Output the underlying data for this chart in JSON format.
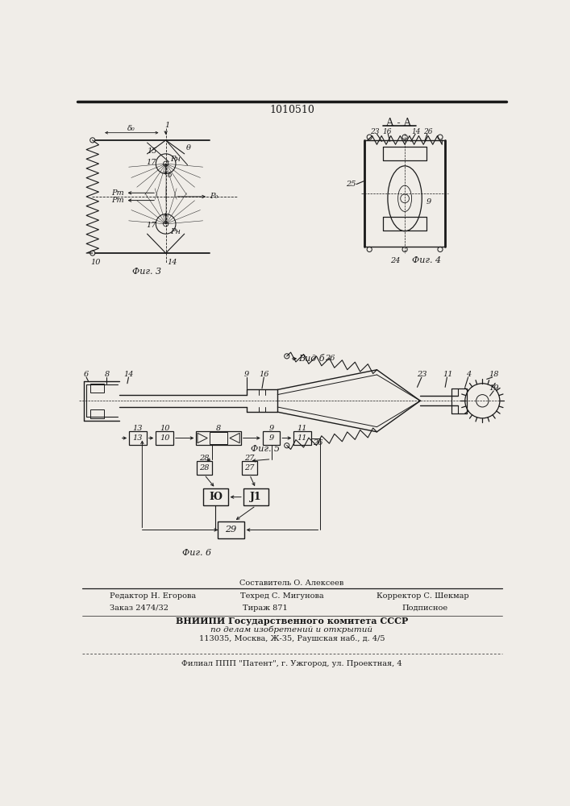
{
  "title": "1010510",
  "bg_color": "#f0ede8",
  "line_color": "#1a1a1a",
  "fig3_label": "Фиг. 3",
  "fig4_label": "Фиг. 4",
  "fig5_label": "Фиг. 5",
  "fig6_label": "Фиг. 6",
  "aa_label": "А - А",
  "vid_label": "Вид б",
  "footer_editor": "Редактор Н. Егорова",
  "footer_composer": "Составитель О. Алексеев",
  "footer_techred": "Техред С. Мигунова",
  "footer_corrector": "Корректор С. Шекмар",
  "footer_order": "Заказ 2474/32",
  "footer_tirazh": "Тираж 871",
  "footer_podp": "Подписное",
  "footer_vniip1": "ВНИИПИ Государственного комитета СССР",
  "footer_vniip2": "по делам изобретений и открытий",
  "footer_addr": "113035, Москва, Ж-35, Раушская наб., д. 4/5",
  "footer_filial": "Филиал ППП \"Патент\", г. Ужгород, ул. Проектная, 4"
}
